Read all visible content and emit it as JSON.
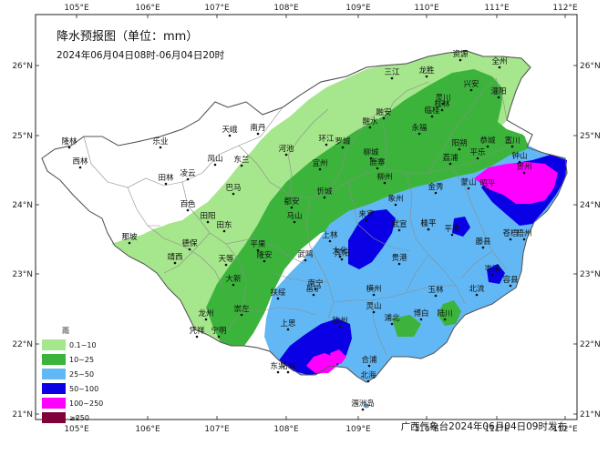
{
  "title": "降水预报图（单位：mm）",
  "subtitle": "2024年06月04日08时-06月04日20时",
  "footer": "广西气象台2024年06月04日09时发布",
  "legend": {
    "title": "雨",
    "items": [
      {
        "label": "0.1~10",
        "color": "#a6e68c"
      },
      {
        "label": "10~25",
        "color": "#3cb43c"
      },
      {
        "label": "25~50",
        "color": "#62b8f4"
      },
      {
        "label": "50~100",
        "color": "#0a00e6"
      },
      {
        "label": "100~250",
        "color": "#ff00ff"
      },
      {
        "label": "≥250",
        "color": "#80003c"
      }
    ]
  },
  "axes": {
    "lon_ticks": [
      "105°E",
      "106°E",
      "107°E",
      "108°E",
      "109°E",
      "110°E",
      "111°E",
      "112°E"
    ],
    "lat_ticks": [
      "26°N",
      "25°N",
      "24°N",
      "23°N",
      "22°N",
      "21°N"
    ]
  },
  "cities": [
    {
      "name": "全州"
    },
    {
      "name": "资源"
    },
    {
      "name": "三江"
    },
    {
      "name": "龙胜"
    },
    {
      "name": "兴安"
    },
    {
      "name": "灌阳"
    },
    {
      "name": "灵川"
    },
    {
      "name": "桂林"
    },
    {
      "name": "临桂"
    },
    {
      "name": "融安"
    },
    {
      "name": "融水"
    },
    {
      "name": "永福"
    },
    {
      "name": "恭城"
    },
    {
      "name": "富川"
    },
    {
      "name": "阳朔"
    },
    {
      "name": "平乐"
    },
    {
      "name": "钟山"
    },
    {
      "name": "贺州"
    },
    {
      "name": "荔浦"
    },
    {
      "name": "昭平"
    },
    {
      "name": "蒙山"
    },
    {
      "name": "金秀"
    },
    {
      "name": "鹿寨"
    },
    {
      "name": "象州"
    },
    {
      "name": "柳州"
    },
    {
      "name": "柳城"
    },
    {
      "name": "罗城"
    },
    {
      "name": "环江"
    },
    {
      "name": "南丹"
    },
    {
      "name": "天峨"
    },
    {
      "name": "河池"
    },
    {
      "name": "宜州"
    },
    {
      "name": "忻城"
    },
    {
      "name": "来宾"
    },
    {
      "name": "武宣"
    },
    {
      "name": "桂平"
    },
    {
      "name": "平南"
    },
    {
      "name": "藤县"
    },
    {
      "name": "苍梧"
    },
    {
      "name": "梧州"
    },
    {
      "name": "岑溪"
    },
    {
      "name": "容县"
    },
    {
      "name": "北流"
    },
    {
      "name": "玉林"
    },
    {
      "name": "贵港"
    },
    {
      "name": "桂平"
    },
    {
      "name": "博白"
    },
    {
      "name": "陆川"
    },
    {
      "name": "隆林"
    },
    {
      "name": "西林"
    },
    {
      "name": "乐业"
    },
    {
      "name": "凤山"
    },
    {
      "name": "东兰"
    },
    {
      "name": "凌云"
    },
    {
      "name": "田林"
    },
    {
      "name": "巴马"
    },
    {
      "name": "都安"
    },
    {
      "name": "马山"
    },
    {
      "name": "大化"
    },
    {
      "name": "百色"
    },
    {
      "name": "田阳"
    },
    {
      "name": "田东"
    },
    {
      "name": "平果"
    },
    {
      "name": "隆安"
    },
    {
      "name": "那坡"
    },
    {
      "name": "德保"
    },
    {
      "name": "靖西"
    },
    {
      "name": "天等"
    },
    {
      "name": "大新"
    },
    {
      "name": "龙州"
    },
    {
      "name": "崇左"
    },
    {
      "name": "凭祥"
    },
    {
      "name": "宁明"
    },
    {
      "name": "扶绥"
    },
    {
      "name": "南宁"
    },
    {
      "name": "武鸣"
    },
    {
      "name": "上林"
    },
    {
      "name": "宾阳"
    },
    {
      "name": "邕宁"
    },
    {
      "name": "横州"
    },
    {
      "name": "灵山"
    },
    {
      "name": "浦北"
    },
    {
      "name": "钦州"
    },
    {
      "name": "上思"
    },
    {
      "name": "防城"
    },
    {
      "name": "东兴"
    },
    {
      "name": "北海"
    },
    {
      "name": "合浦"
    },
    {
      "name": "涠洲岛"
    }
  ]
}
